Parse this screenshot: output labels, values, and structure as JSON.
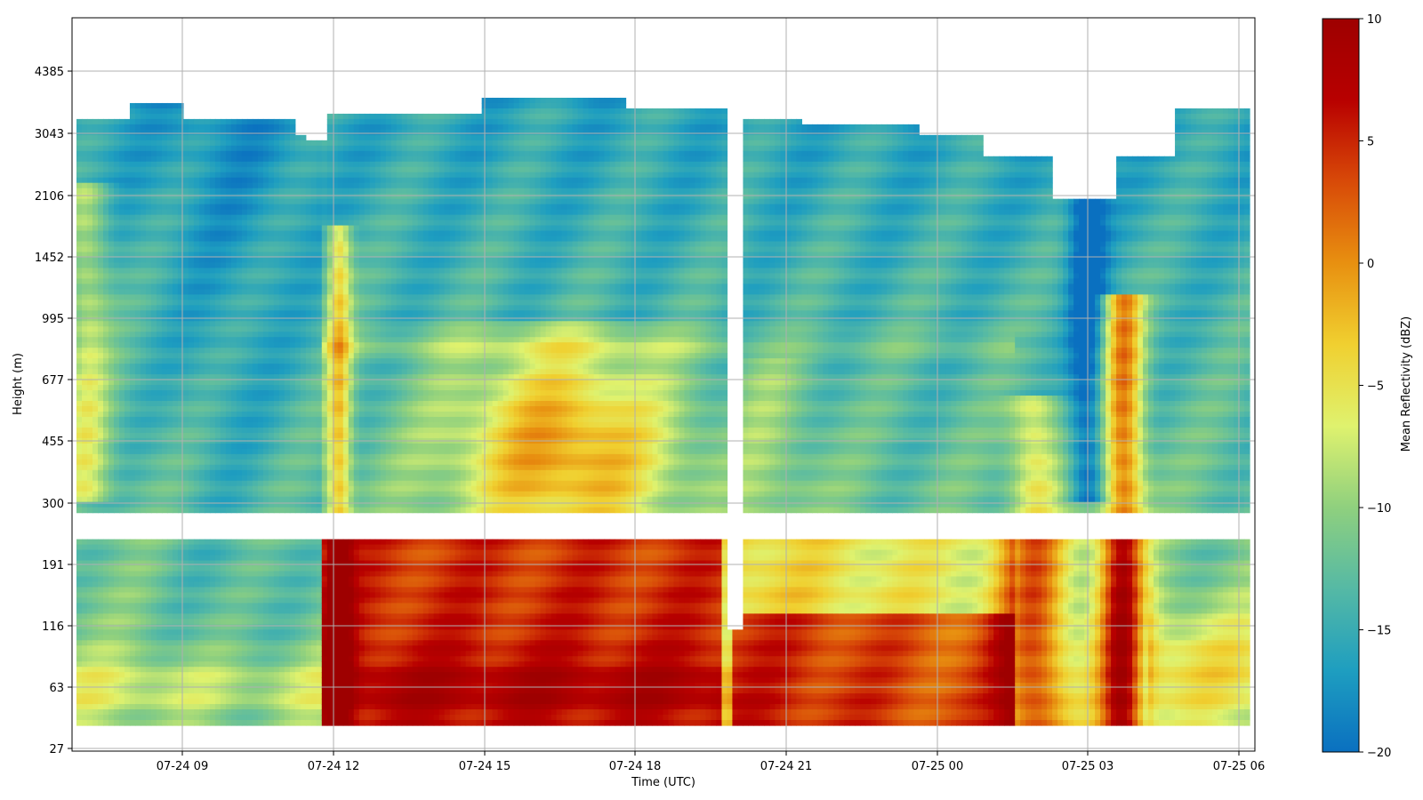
{
  "chart_data": {
    "type": "heatmap",
    "title": "",
    "xlabel": "Time (UTC)",
    "ylabel": "Height (m)",
    "x_ticks": [
      "07-24 09",
      "07-24 12",
      "07-24 15",
      "07-24 18",
      "07-24 21",
      "07-25 00",
      "07-25 03",
      "07-25 06"
    ],
    "y_ticks": [
      "27",
      "63",
      "116",
      "191",
      "300",
      "455",
      "677",
      "995",
      "1452",
      "2106",
      "3043",
      "4385"
    ],
    "x_range": [
      "07-24 06:50",
      "07-25 06:20"
    ],
    "y_scale": "log",
    "grid": true,
    "colorbar": {
      "label": "Mean Reflectivity (dBZ)",
      "min": -20,
      "max": 10,
      "ticks": [
        "10",
        "5",
        "0",
        "−5",
        "−10",
        "−15",
        "−20"
      ],
      "colormap": [
        "#0a70c0",
        "#1e9ec0",
        "#55b9a5",
        "#8fd07e",
        "#dff26e",
        "#f0d030",
        "#e89010",
        "#d84a08",
        "#b80000",
        "#9e0000"
      ]
    },
    "missing_data": {
      "time_gap": [
        "07-24 20:00",
        "07-24 20:20"
      ],
      "height_gap_m": [
        215,
        260
      ]
    },
    "values_description_regions": [
      {
        "time": [
          "07-24 06:50",
          "07-24 11:50"
        ],
        "height_m": [
          30,
          3300
        ],
        "dbz": -12
      },
      {
        "time": [
          "07-24 11:50",
          "07-24 20:00"
        ],
        "height_m": [
          30,
          230
        ],
        "dbz": 8
      },
      {
        "time": [
          "07-24 15:00",
          "07-24 19:00"
        ],
        "height_m": [
          300,
          900
        ],
        "dbz": 4
      },
      {
        "time": [
          "07-25 01:30",
          "07-25 02:45"
        ],
        "height_m": [
          30,
          230
        ],
        "dbz": 7
      },
      {
        "time": [
          "07-25 03:30",
          "07-25 04:20"
        ],
        "height_m": [
          30,
          1100
        ],
        "dbz": 3
      }
    ]
  }
}
